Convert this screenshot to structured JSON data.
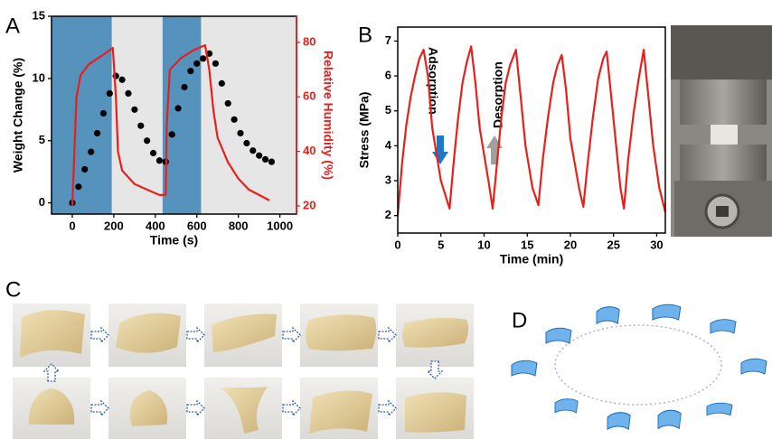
{
  "panel_labels": [
    "A",
    "B",
    "C",
    "D"
  ],
  "chart_data": [
    {
      "type": "line",
      "xlabel": "Time (s)",
      "ylabel": "Weight Change (%)",
      "y2label": "Relative Humidity (%)",
      "xlim": [
        -100,
        1080
      ],
      "ylim": [
        -0.9,
        15
      ],
      "y2lim": [
        17,
        89.6
      ],
      "xticks": [
        0,
        200,
        400,
        600,
        800,
        1000
      ],
      "yticks": [
        0,
        5,
        10,
        15
      ],
      "y2ticks": [
        20,
        40,
        60,
        80
      ],
      "background": "#e6e6e6",
      "band_color": "#5592bc",
      "bands": [
        [
          -100,
          190
        ],
        [
          435,
          620
        ]
      ],
      "series": [
        {
          "marker": "circle",
          "color": "#000000",
          "x": [
            0,
            30,
            60,
            90,
            120,
            150,
            180,
            210,
            240,
            270,
            300,
            330,
            360,
            390,
            420,
            450,
            480,
            510,
            540,
            570,
            600,
            630,
            660,
            690,
            720,
            750,
            780,
            810,
            840,
            870,
            900,
            930,
            960
          ],
          "values": [
            0,
            1.3,
            2.7,
            4.1,
            5.6,
            7.2,
            8.8,
            10.2,
            9.9,
            8.8,
            7.5,
            6.2,
            5.0,
            4.0,
            3.4,
            3.3,
            5.5,
            7.6,
            9.3,
            10.6,
            11.2,
            11.6,
            12.0,
            11.2,
            9.6,
            8.0,
            6.7,
            5.6,
            4.8,
            4.2,
            3.8,
            3.5,
            3.3
          ]
        },
        {
          "marker": "line",
          "axis": "y2",
          "color": "#e8201c",
          "x": [
            0,
            10,
            20,
            40,
            80,
            120,
            160,
            195,
            210,
            220,
            240,
            300,
            360,
            420,
            450,
            455,
            470,
            520,
            580,
            640,
            660,
            680,
            700,
            750,
            800,
            850,
            900,
            950
          ],
          "values": [
            20,
            40,
            60,
            68,
            72,
            74,
            76,
            78,
            60,
            40,
            33,
            28,
            26,
            24,
            24,
            50,
            70,
            74,
            77,
            79,
            70,
            55,
            45,
            36,
            30,
            26,
            24,
            22
          ]
        }
      ]
    },
    {
      "type": "line",
      "xlabel": "Time (min)",
      "ylabel": "Stress (MPa)",
      "xlim": [
        0,
        31
      ],
      "ylim": [
        1.5,
        7.4
      ],
      "xticks": [
        0,
        5,
        10,
        15,
        20,
        25,
        30
      ],
      "yticks": [
        2,
        3,
        4,
        5,
        6,
        7
      ],
      "annotations": [
        "Adsorption",
        "Desorption"
      ],
      "series": [
        {
          "marker": "line",
          "color": "#e8201c",
          "x": [
            0,
            0.5,
            1,
            1.5,
            2,
            2.5,
            3,
            3.5,
            4,
            5,
            6,
            6.5,
            7,
            7.5,
            8,
            8.5,
            9,
            9.5,
            10.5,
            11,
            11.5,
            12,
            12.5,
            13,
            13.7,
            14.2,
            14.8,
            15.6,
            16.3,
            16.8,
            17.4,
            18,
            18.5,
            19,
            19.5,
            20,
            21,
            21.5,
            22,
            22.6,
            23.2,
            23.8,
            24.2,
            24.7,
            25.3,
            25.8,
            26.2,
            26.7,
            27.3,
            27.9,
            28.5,
            29,
            29.6,
            30.3,
            31
          ],
          "values": [
            2.0,
            3.5,
            4.6,
            5.4,
            6.0,
            6.5,
            6.75,
            6.0,
            4.5,
            3.0,
            2.2,
            3.6,
            4.8,
            5.8,
            6.4,
            6.85,
            5.8,
            4.5,
            3.0,
            2.2,
            3.5,
            4.8,
            5.8,
            6.3,
            6.75,
            5.5,
            4.0,
            2.8,
            2.3,
            3.6,
            4.8,
            5.8,
            6.3,
            6.6,
            5.6,
            4.2,
            2.8,
            2.25,
            3.5,
            4.8,
            5.9,
            6.5,
            6.7,
            5.5,
            4.0,
            2.8,
            2.2,
            3.6,
            4.9,
            5.9,
            6.75,
            5.5,
            4.0,
            2.8,
            2.1
          ]
        }
      ]
    }
  ]
}
